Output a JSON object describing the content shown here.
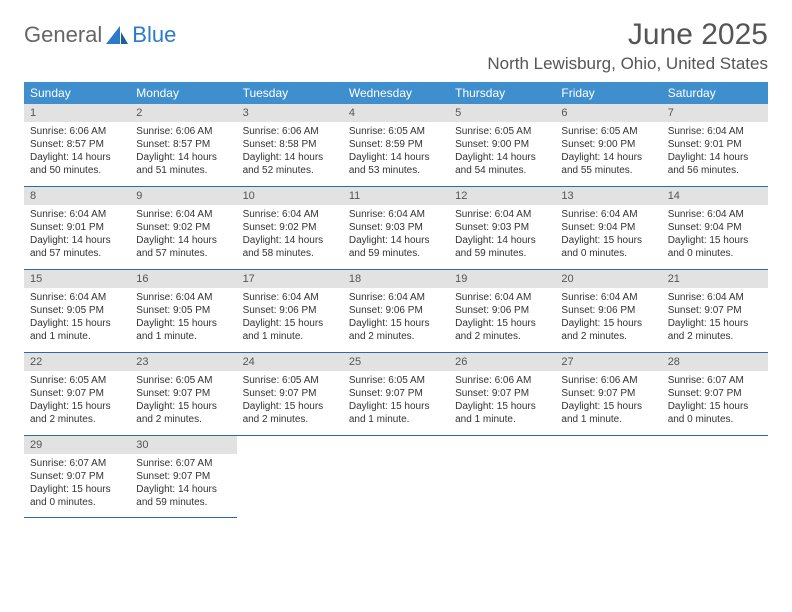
{
  "brand": {
    "word1": "General",
    "word2": "Blue"
  },
  "title": "June 2025",
  "location": "North Lewisburg, Ohio, United States",
  "colors": {
    "header_bg": "#3f8fcf",
    "header_text": "#ffffff",
    "daynum_bg": "#e2e2e2",
    "daynum_text": "#555555",
    "rule": "#2c6aa8",
    "body_text": "#333333",
    "logo_gray": "#666666",
    "logo_blue": "#2c7ac9"
  },
  "dayNames": [
    "Sunday",
    "Monday",
    "Tuesday",
    "Wednesday",
    "Thursday",
    "Friday",
    "Saturday"
  ],
  "weeks": [
    [
      {
        "n": "1",
        "sr": "Sunrise: 6:06 AM",
        "ss": "Sunset: 8:57 PM",
        "d1": "Daylight: 14 hours",
        "d2": "and 50 minutes."
      },
      {
        "n": "2",
        "sr": "Sunrise: 6:06 AM",
        "ss": "Sunset: 8:57 PM",
        "d1": "Daylight: 14 hours",
        "d2": "and 51 minutes."
      },
      {
        "n": "3",
        "sr": "Sunrise: 6:06 AM",
        "ss": "Sunset: 8:58 PM",
        "d1": "Daylight: 14 hours",
        "d2": "and 52 minutes."
      },
      {
        "n": "4",
        "sr": "Sunrise: 6:05 AM",
        "ss": "Sunset: 8:59 PM",
        "d1": "Daylight: 14 hours",
        "d2": "and 53 minutes."
      },
      {
        "n": "5",
        "sr": "Sunrise: 6:05 AM",
        "ss": "Sunset: 9:00 PM",
        "d1": "Daylight: 14 hours",
        "d2": "and 54 minutes."
      },
      {
        "n": "6",
        "sr": "Sunrise: 6:05 AM",
        "ss": "Sunset: 9:00 PM",
        "d1": "Daylight: 14 hours",
        "d2": "and 55 minutes."
      },
      {
        "n": "7",
        "sr": "Sunrise: 6:04 AM",
        "ss": "Sunset: 9:01 PM",
        "d1": "Daylight: 14 hours",
        "d2": "and 56 minutes."
      }
    ],
    [
      {
        "n": "8",
        "sr": "Sunrise: 6:04 AM",
        "ss": "Sunset: 9:01 PM",
        "d1": "Daylight: 14 hours",
        "d2": "and 57 minutes."
      },
      {
        "n": "9",
        "sr": "Sunrise: 6:04 AM",
        "ss": "Sunset: 9:02 PM",
        "d1": "Daylight: 14 hours",
        "d2": "and 57 minutes."
      },
      {
        "n": "10",
        "sr": "Sunrise: 6:04 AM",
        "ss": "Sunset: 9:02 PM",
        "d1": "Daylight: 14 hours",
        "d2": "and 58 minutes."
      },
      {
        "n": "11",
        "sr": "Sunrise: 6:04 AM",
        "ss": "Sunset: 9:03 PM",
        "d1": "Daylight: 14 hours",
        "d2": "and 59 minutes."
      },
      {
        "n": "12",
        "sr": "Sunrise: 6:04 AM",
        "ss": "Sunset: 9:03 PM",
        "d1": "Daylight: 14 hours",
        "d2": "and 59 minutes."
      },
      {
        "n": "13",
        "sr": "Sunrise: 6:04 AM",
        "ss": "Sunset: 9:04 PM",
        "d1": "Daylight: 15 hours",
        "d2": "and 0 minutes."
      },
      {
        "n": "14",
        "sr": "Sunrise: 6:04 AM",
        "ss": "Sunset: 9:04 PM",
        "d1": "Daylight: 15 hours",
        "d2": "and 0 minutes."
      }
    ],
    [
      {
        "n": "15",
        "sr": "Sunrise: 6:04 AM",
        "ss": "Sunset: 9:05 PM",
        "d1": "Daylight: 15 hours",
        "d2": "and 1 minute."
      },
      {
        "n": "16",
        "sr": "Sunrise: 6:04 AM",
        "ss": "Sunset: 9:05 PM",
        "d1": "Daylight: 15 hours",
        "d2": "and 1 minute."
      },
      {
        "n": "17",
        "sr": "Sunrise: 6:04 AM",
        "ss": "Sunset: 9:06 PM",
        "d1": "Daylight: 15 hours",
        "d2": "and 1 minute."
      },
      {
        "n": "18",
        "sr": "Sunrise: 6:04 AM",
        "ss": "Sunset: 9:06 PM",
        "d1": "Daylight: 15 hours",
        "d2": "and 2 minutes."
      },
      {
        "n": "19",
        "sr": "Sunrise: 6:04 AM",
        "ss": "Sunset: 9:06 PM",
        "d1": "Daylight: 15 hours",
        "d2": "and 2 minutes."
      },
      {
        "n": "20",
        "sr": "Sunrise: 6:04 AM",
        "ss": "Sunset: 9:06 PM",
        "d1": "Daylight: 15 hours",
        "d2": "and 2 minutes."
      },
      {
        "n": "21",
        "sr": "Sunrise: 6:04 AM",
        "ss": "Sunset: 9:07 PM",
        "d1": "Daylight: 15 hours",
        "d2": "and 2 minutes."
      }
    ],
    [
      {
        "n": "22",
        "sr": "Sunrise: 6:05 AM",
        "ss": "Sunset: 9:07 PM",
        "d1": "Daylight: 15 hours",
        "d2": "and 2 minutes."
      },
      {
        "n": "23",
        "sr": "Sunrise: 6:05 AM",
        "ss": "Sunset: 9:07 PM",
        "d1": "Daylight: 15 hours",
        "d2": "and 2 minutes."
      },
      {
        "n": "24",
        "sr": "Sunrise: 6:05 AM",
        "ss": "Sunset: 9:07 PM",
        "d1": "Daylight: 15 hours",
        "d2": "and 2 minutes."
      },
      {
        "n": "25",
        "sr": "Sunrise: 6:05 AM",
        "ss": "Sunset: 9:07 PM",
        "d1": "Daylight: 15 hours",
        "d2": "and 1 minute."
      },
      {
        "n": "26",
        "sr": "Sunrise: 6:06 AM",
        "ss": "Sunset: 9:07 PM",
        "d1": "Daylight: 15 hours",
        "d2": "and 1 minute."
      },
      {
        "n": "27",
        "sr": "Sunrise: 6:06 AM",
        "ss": "Sunset: 9:07 PM",
        "d1": "Daylight: 15 hours",
        "d2": "and 1 minute."
      },
      {
        "n": "28",
        "sr": "Sunrise: 6:07 AM",
        "ss": "Sunset: 9:07 PM",
        "d1": "Daylight: 15 hours",
        "d2": "and 0 minutes."
      }
    ],
    [
      {
        "n": "29",
        "sr": "Sunrise: 6:07 AM",
        "ss": "Sunset: 9:07 PM",
        "d1": "Daylight: 15 hours",
        "d2": "and 0 minutes."
      },
      {
        "n": "30",
        "sr": "Sunrise: 6:07 AM",
        "ss": "Sunset: 9:07 PM",
        "d1": "Daylight: 14 hours",
        "d2": "and 59 minutes."
      },
      null,
      null,
      null,
      null,
      null
    ]
  ]
}
